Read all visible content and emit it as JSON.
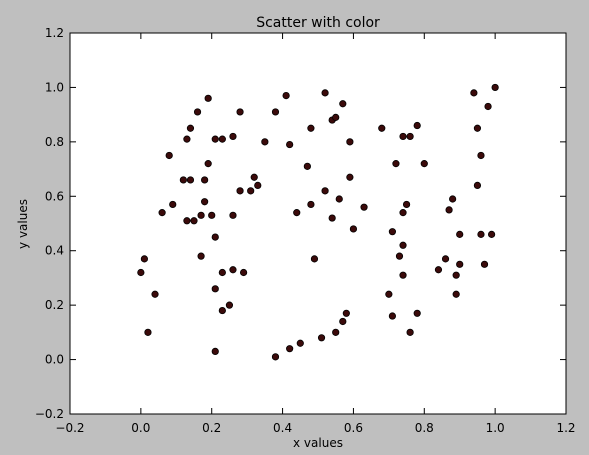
{
  "chart_data": {
    "type": "scatter",
    "title": "Scatter with color",
    "xlabel": "x values",
    "ylabel": "y values",
    "xlim": [
      -0.2,
      1.2
    ],
    "ylim": [
      -0.2,
      1.2
    ],
    "xticks": [
      "−0.2",
      "0.0",
      "0.2",
      "0.4",
      "0.6",
      "0.8",
      "1.0",
      "1.2"
    ],
    "yticks": [
      "−0.2",
      "0.0",
      "0.2",
      "0.4",
      "0.6",
      "0.8",
      "1.0",
      "1.2"
    ],
    "grid": false,
    "marker_color": "#3b0a0a",
    "points": [
      [
        0.0,
        0.32
      ],
      [
        0.01,
        0.37
      ],
      [
        0.02,
        0.1
      ],
      [
        0.04,
        0.24
      ],
      [
        0.06,
        0.54
      ],
      [
        0.08,
        0.75
      ],
      [
        0.09,
        0.57
      ],
      [
        0.12,
        0.66
      ],
      [
        0.13,
        0.81
      ],
      [
        0.13,
        0.51
      ],
      [
        0.14,
        0.66
      ],
      [
        0.14,
        0.85
      ],
      [
        0.15,
        0.51
      ],
      [
        0.16,
        0.91
      ],
      [
        0.17,
        0.38
      ],
      [
        0.17,
        0.53
      ],
      [
        0.18,
        0.58
      ],
      [
        0.18,
        0.66
      ],
      [
        0.19,
        0.72
      ],
      [
        0.19,
        0.96
      ],
      [
        0.2,
        0.53
      ],
      [
        0.21,
        0.26
      ],
      [
        0.21,
        0.45
      ],
      [
        0.21,
        0.81
      ],
      [
        0.21,
        0.03
      ],
      [
        0.23,
        0.81
      ],
      [
        0.23,
        0.32
      ],
      [
        0.23,
        0.18
      ],
      [
        0.25,
        0.2
      ],
      [
        0.26,
        0.33
      ],
      [
        0.26,
        0.53
      ],
      [
        0.26,
        0.82
      ],
      [
        0.28,
        0.62
      ],
      [
        0.28,
        0.91
      ],
      [
        0.29,
        0.32
      ],
      [
        0.31,
        0.62
      ],
      [
        0.32,
        0.67
      ],
      [
        0.33,
        0.64
      ],
      [
        0.35,
        0.8
      ],
      [
        0.38,
        0.91
      ],
      [
        0.38,
        0.01
      ],
      [
        0.41,
        0.97
      ],
      [
        0.42,
        0.79
      ],
      [
        0.42,
        0.04
      ],
      [
        0.44,
        0.54
      ],
      [
        0.45,
        0.06
      ],
      [
        0.47,
        0.71
      ],
      [
        0.48,
        0.57
      ],
      [
        0.48,
        0.85
      ],
      [
        0.49,
        0.37
      ],
      [
        0.51,
        0.08
      ],
      [
        0.52,
        0.98
      ],
      [
        0.52,
        0.62
      ],
      [
        0.54,
        0.52
      ],
      [
        0.54,
        0.88
      ],
      [
        0.55,
        0.1
      ],
      [
        0.55,
        0.89
      ],
      [
        0.56,
        0.59
      ],
      [
        0.57,
        0.14
      ],
      [
        0.57,
        0.94
      ],
      [
        0.58,
        0.17
      ],
      [
        0.59,
        0.67
      ],
      [
        0.59,
        0.8
      ],
      [
        0.6,
        0.48
      ],
      [
        0.63,
        0.56
      ],
      [
        0.68,
        0.85
      ],
      [
        0.7,
        0.24
      ],
      [
        0.71,
        0.16
      ],
      [
        0.71,
        0.47
      ],
      [
        0.72,
        0.72
      ],
      [
        0.73,
        0.38
      ],
      [
        0.74,
        0.42
      ],
      [
        0.74,
        0.31
      ],
      [
        0.74,
        0.54
      ],
      [
        0.74,
        0.82
      ],
      [
        0.75,
        0.57
      ],
      [
        0.76,
        0.82
      ],
      [
        0.76,
        0.1
      ],
      [
        0.78,
        0.17
      ],
      [
        0.78,
        0.86
      ],
      [
        0.8,
        0.72
      ],
      [
        0.84,
        0.33
      ],
      [
        0.86,
        0.37
      ],
      [
        0.87,
        0.55
      ],
      [
        0.88,
        0.59
      ],
      [
        0.89,
        0.24
      ],
      [
        0.89,
        0.31
      ],
      [
        0.9,
        0.46
      ],
      [
        0.9,
        0.35
      ],
      [
        0.94,
        0.98
      ],
      [
        0.95,
        0.64
      ],
      [
        0.95,
        0.85
      ],
      [
        0.96,
        0.46
      ],
      [
        0.96,
        0.75
      ],
      [
        0.97,
        0.35
      ],
      [
        0.98,
        0.93
      ],
      [
        0.99,
        0.46
      ],
      [
        1.0,
        1.0
      ]
    ]
  }
}
